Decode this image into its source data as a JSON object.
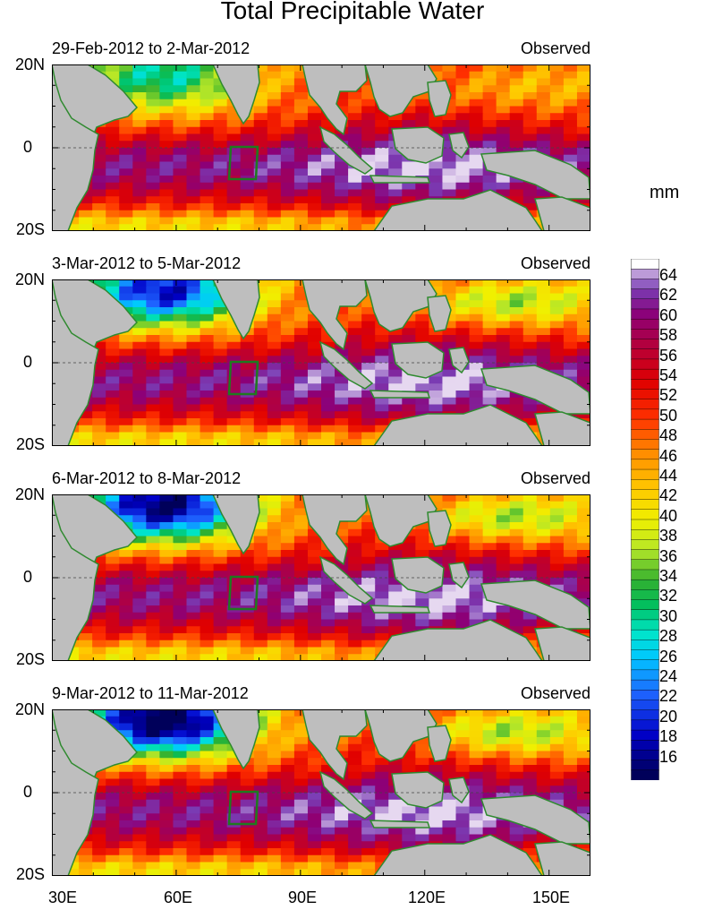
{
  "title": "Total Precipitable Water",
  "unit_label": "mm",
  "panels": [
    {
      "date_range": "29-Feb-2012 to 2-Mar-2012",
      "tag": "Observed"
    },
    {
      "date_range": "3-Mar-2012 to 5-Mar-2012",
      "tag": "Observed"
    },
    {
      "date_range": "6-Mar-2012 to 8-Mar-2012",
      "tag": "Observed"
    },
    {
      "date_range": "9-Mar-2012 to 11-Mar-2012",
      "tag": "Observed"
    }
  ],
  "y_axis_labels": [
    "20N",
    "0",
    "20S"
  ],
  "x_axis_labels": [
    "30E",
    "60E",
    "90E",
    "120E",
    "150E"
  ],
  "colorbar_labels": [
    "64",
    "62",
    "60",
    "58",
    "56",
    "54",
    "52",
    "50",
    "48",
    "46",
    "44",
    "42",
    "40",
    "38",
    "36",
    "34",
    "32",
    "30",
    "28",
    "26",
    "24",
    "22",
    "20",
    "18",
    "16"
  ],
  "colors": {
    "land": "#bebebe",
    "coast": "#2f8a2f",
    "box": "#1f7a1f",
    "water_low": "#000060",
    "water_high": "#ffffff"
  },
  "map_extent": {
    "lon": [
      30,
      160
    ],
    "lat": [
      -20,
      20
    ]
  }
}
